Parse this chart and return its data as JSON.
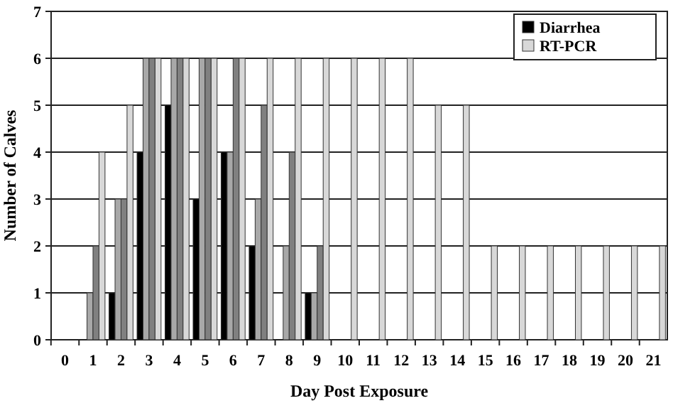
{
  "chart_data": {
    "type": "bar",
    "xlabel": "Day Post Exposure",
    "ylabel": "Number of Calves",
    "categories": [
      "0",
      "1",
      "2",
      "3",
      "4",
      "5",
      "6",
      "7",
      "8",
      "9",
      "10",
      "11",
      "12",
      "13",
      "14",
      "15",
      "16",
      "17",
      "18",
      "19",
      "20",
      "21"
    ],
    "series": [
      {
        "name": "Diarrhea",
        "color": "#000000",
        "values": [
          0,
          0,
          1,
          4,
          5,
          3,
          4,
          2,
          0,
          1,
          0,
          0,
          0,
          0,
          0,
          0,
          0,
          0,
          0,
          0,
          0,
          0
        ]
      },
      {
        "color": "#a8a8a8",
        "values": [
          0,
          1,
          3,
          6,
          6,
          6,
          4,
          3,
          2,
          1,
          0,
          0,
          0,
          0,
          0,
          0,
          0,
          0,
          0,
          0,
          0,
          0
        ]
      },
      {
        "color": "#808080",
        "values": [
          0,
          2,
          3,
          6,
          6,
          6,
          6,
          5,
          4,
          2,
          0,
          0,
          0,
          0,
          0,
          0,
          0,
          0,
          0,
          0,
          0,
          0
        ]
      },
      {
        "name": "RT-PCR",
        "color": "#d8d8d8",
        "values": [
          0,
          4,
          5,
          6,
          6,
          6,
          6,
          6,
          6,
          6,
          6,
          6,
          6,
          5,
          5,
          2,
          2,
          2,
          2,
          2,
          2,
          2
        ]
      }
    ],
    "ylim": [
      0,
      7
    ],
    "yticks": [
      0,
      1,
      2,
      3,
      4,
      5,
      6,
      7
    ],
    "grid": "y",
    "legend": "top right"
  }
}
